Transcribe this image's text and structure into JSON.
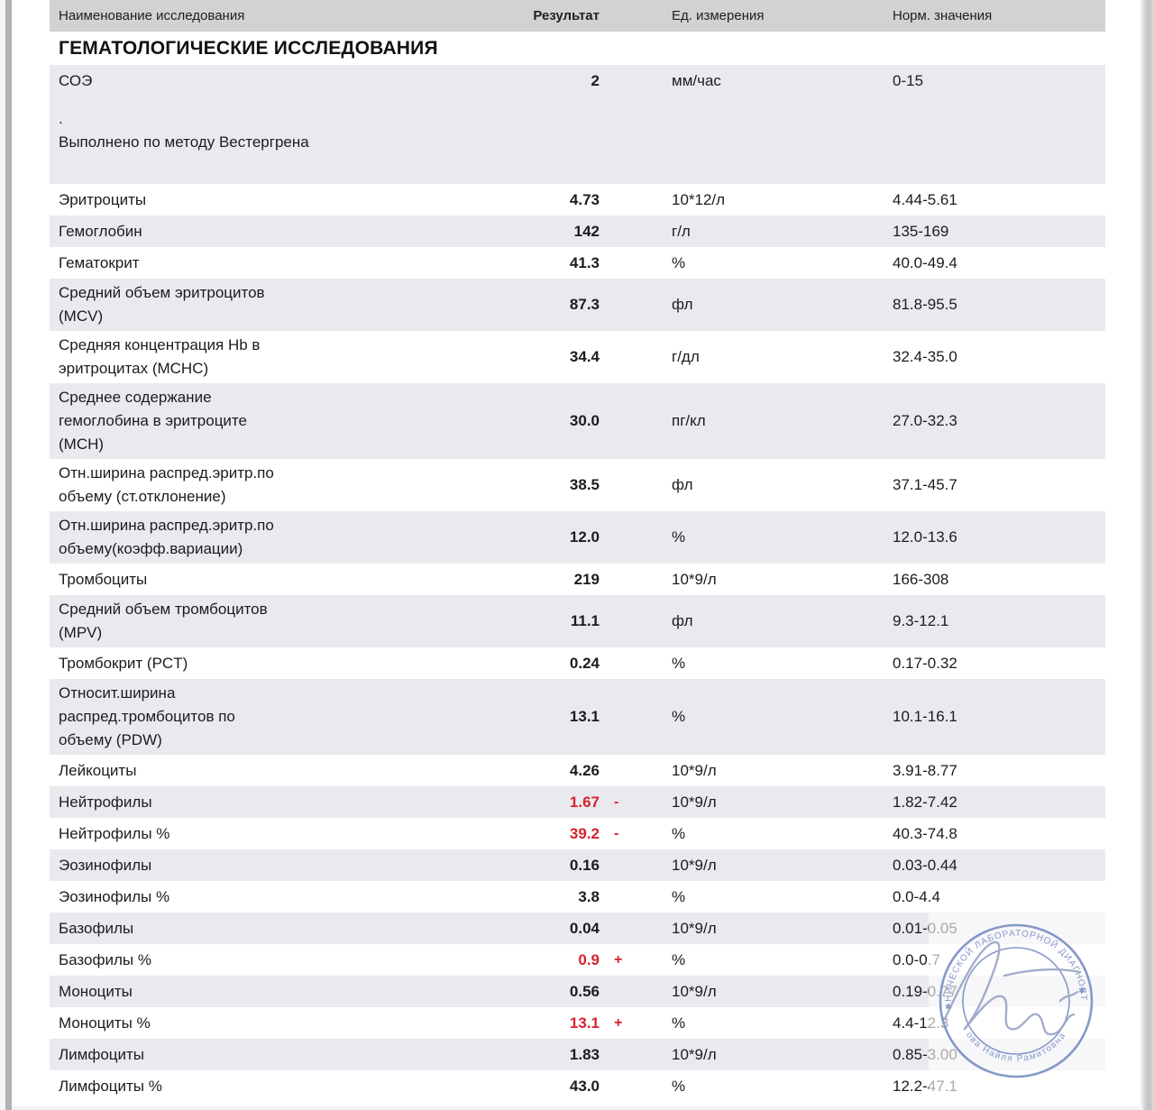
{
  "table": {
    "columns": {
      "name": "Наименование исследования",
      "result": "Результат",
      "unit": "Ед. измерения",
      "norm": "Норм. значения"
    },
    "section_title": "ГЕМАТОЛОГИЧЕСКИЕ ИССЛЕДОВАНИЯ",
    "rows": [
      {
        "name": "СОЭ",
        "result": "2",
        "flag": "",
        "abnormal": false,
        "unit": "мм/час",
        "norm": "0-15",
        "comment": ".\nВыполнено по методу Вестергрена"
      },
      {
        "name": "Эритроциты",
        "result": "4.73",
        "flag": "",
        "abnormal": false,
        "unit": "10*12/л",
        "norm": "4.44-5.61"
      },
      {
        "name": "Гемоглобин",
        "result": "142",
        "flag": "",
        "abnormal": false,
        "unit": "г/л",
        "norm": "135-169"
      },
      {
        "name": "Гематокрит",
        "result": "41.3",
        "flag": "",
        "abnormal": false,
        "unit": "%",
        "norm": "40.0-49.4"
      },
      {
        "name": "Средний объем эритроцитов\n(MCV)",
        "result": "87.3",
        "flag": "",
        "abnormal": false,
        "unit": "фл",
        "norm": "81.8-95.5"
      },
      {
        "name": "Средняя концентрация Hb в\nэритроцитах (MCHC)",
        "result": "34.4",
        "flag": "",
        "abnormal": false,
        "unit": "г/дл",
        "norm": "32.4-35.0"
      },
      {
        "name": "Среднее содержание\nгемоглобина в эритроците\n(MCH)",
        "result": "30.0",
        "flag": "",
        "abnormal": false,
        "unit": "пг/кл",
        "norm": "27.0-32.3"
      },
      {
        "name": "Отн.ширина распред.эритр.по\nобъему (ст.отклонение)",
        "result": "38.5",
        "flag": "",
        "abnormal": false,
        "unit": "фл",
        "norm": "37.1-45.7"
      },
      {
        "name": "Отн.ширина распред.эритр.по\nобъему(коэфф.вариации)",
        "result": "12.0",
        "flag": "",
        "abnormal": false,
        "unit": "%",
        "norm": "12.0-13.6"
      },
      {
        "name": "Тромбоциты",
        "result": "219",
        "flag": "",
        "abnormal": false,
        "unit": "10*9/л",
        "norm": "166-308"
      },
      {
        "name": "Средний объем тромбоцитов\n(MPV)",
        "result": "11.1",
        "flag": "",
        "abnormal": false,
        "unit": "фл",
        "norm": "9.3-12.1"
      },
      {
        "name": "Тромбокрит (PCT)",
        "result": "0.24",
        "flag": "",
        "abnormal": false,
        "unit": "%",
        "norm": "0.17-0.32"
      },
      {
        "name": "Относит.ширина\nраспред.тромбоцитов по\nобъему (PDW)",
        "result": "13.1",
        "flag": "",
        "abnormal": false,
        "unit": "%",
        "norm": "10.1-16.1"
      },
      {
        "name": "Лейкоциты",
        "result": "4.26",
        "flag": "",
        "abnormal": false,
        "unit": "10*9/л",
        "norm": "3.91-8.77"
      },
      {
        "name": "Нейтрофилы",
        "result": "1.67",
        "flag": "-",
        "abnormal": true,
        "unit": "10*9/л",
        "norm": "1.82-7.42"
      },
      {
        "name": "Нейтрофилы %",
        "result": "39.2",
        "flag": "-",
        "abnormal": true,
        "unit": "%",
        "norm": "40.3-74.8"
      },
      {
        "name": "Эозинофилы",
        "result": "0.16",
        "flag": "",
        "abnormal": false,
        "unit": "10*9/л",
        "norm": "0.03-0.44"
      },
      {
        "name": "Эозинофилы %",
        "result": "3.8",
        "flag": "",
        "abnormal": false,
        "unit": "%",
        "norm": "0.0-4.4"
      },
      {
        "name": "Базофилы",
        "result": "0.04",
        "flag": "",
        "abnormal": false,
        "unit": "10*9/л",
        "norm": "0.01-0.05"
      },
      {
        "name": "Базофилы %",
        "result": "0.9",
        "flag": "+",
        "abnormal": true,
        "unit": "%",
        "norm": "0.0-0.7"
      },
      {
        "name": "Моноциты",
        "result": "0.56",
        "flag": "",
        "abnormal": false,
        "unit": "10*9/л",
        "norm": "0.19-0.77"
      },
      {
        "name": "Моноциты %",
        "result": "13.1",
        "flag": "+",
        "abnormal": true,
        "unit": "%",
        "norm": "4.4-12.3"
      },
      {
        "name": "Лимфоциты",
        "result": "1.83",
        "flag": "",
        "abnormal": false,
        "unit": "10*9/л",
        "norm": "0.85-3.00"
      },
      {
        "name": "Лимфоциты %",
        "result": "43.0",
        "flag": "",
        "abnormal": false,
        "unit": "%",
        "norm": "12.2-47.1"
      }
    ]
  },
  "stamp": {
    "arc_top": "КЛИНИЧЕСКОЙ ЛАБОРАТОРНОЙ ДИАГНОСТИКИ",
    "arc_bottom": "ова  Найля  Рамитовна",
    "star": "✱"
  },
  "colors": {
    "abnormal_red": "#d5232d",
    "row_shade": "#eaeaee",
    "header_bg": "#d2d2d4",
    "stamp_blue": "#7c90c4"
  }
}
